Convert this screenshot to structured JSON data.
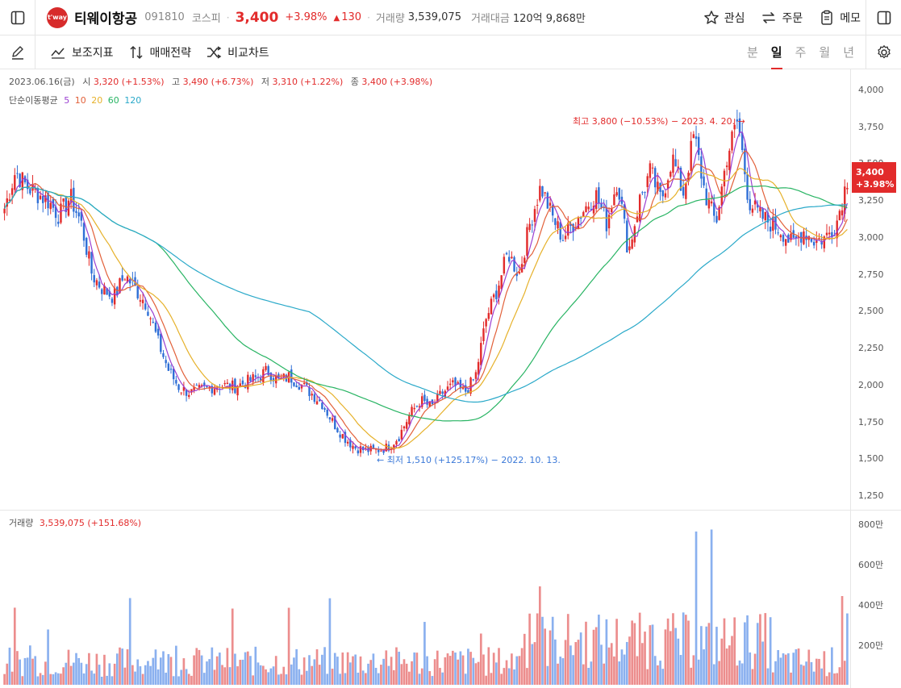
{
  "header": {
    "logo_text": "t'way",
    "name": "티웨이항공",
    "code": "091810",
    "market": "코스피",
    "price": "3,400",
    "change_pct": "+3.98%",
    "change_arrow": "▲",
    "change_amt": "130",
    "volume_label": "거래량",
    "volume_value": "3,539,075",
    "amount_label": "거래대금",
    "amount_value": "120억 9,868만",
    "actions": {
      "watch": "관심",
      "order": "주문",
      "memo": "메모"
    }
  },
  "toolbar": {
    "indicators": "보조지표",
    "strategy": "매매전략",
    "compare": "비교차트",
    "periods": [
      "분",
      "일",
      "주",
      "월",
      "년"
    ],
    "active_period": "일"
  },
  "ohlc": {
    "date": "2023.06.16(금)",
    "open_label": "시",
    "open": "3,320 (+1.53%)",
    "high_label": "고",
    "high": "3,490 (+6.73%)",
    "low_label": "저",
    "low": "3,310 (+1.22%)",
    "close_label": "종",
    "close": "3,400 (+3.98%)"
  },
  "ma": {
    "label": "단순이동평균",
    "periods": [
      {
        "value": "5",
        "color": "#9b3fd1"
      },
      {
        "value": "10",
        "color": "#e2613a"
      },
      {
        "value": "20",
        "color": "#e6b12a"
      },
      {
        "value": "60",
        "color": "#28b463"
      },
      {
        "value": "120",
        "color": "#2aa9c9"
      }
    ]
  },
  "annotations": {
    "high": "최고 3,800 (−10.53%) − 2023. 4. 20. →",
    "low": "← 최저 1,510 (+125.17%) − 2022. 10. 13."
  },
  "price_tag": {
    "price": "3,400",
    "pct": "+3.98%"
  },
  "volume_info": {
    "label": "거래량",
    "value": "3,539,075 (+151.68%)"
  },
  "chart_data": {
    "type": "candlestick",
    "price_axis": {
      "ticks": [
        "4,000",
        "3,750",
        "3,500",
        "3,250",
        "3,000",
        "2,750",
        "2,500",
        "2,250",
        "2,000",
        "1,750",
        "1,500",
        "1,250"
      ],
      "range": [
        1250,
        4000
      ]
    },
    "volume_axis": {
      "ticks": [
        "800만",
        "600만",
        "400만",
        "200만"
      ],
      "range": [
        0,
        8000000
      ]
    },
    "price_path": [
      3200,
      3450,
      3350,
      3300,
      3250,
      3150,
      3280,
      3100,
      2750,
      2650,
      2600,
      2750,
      2650,
      2550,
      2300,
      2100,
      1980,
      1950,
      1970,
      1990,
      2000,
      1990,
      2020,
      2050,
      2100,
      2030,
      2060,
      2010,
      1950,
      1880,
      1750,
      1650,
      1580,
      1560,
      1560,
      1580,
      1650,
      1800,
      1900,
      1850,
      1950,
      2000,
      1950,
      2050,
      2450,
      2650,
      2900,
      2750,
      3100,
      3350,
      3150,
      3000,
      3100,
      3200,
      3300,
      3100,
      3400,
      2900,
      3250,
      3450,
      3250,
      3550,
      3300,
      3700,
      3300,
      3100,
      3550,
      3800,
      3250,
      3150,
      3100,
      3050,
      2950,
      3050,
      2980,
      3000,
      3100,
      3400
    ],
    "ma_notes": "MA lines drawn from the price path"
  }
}
